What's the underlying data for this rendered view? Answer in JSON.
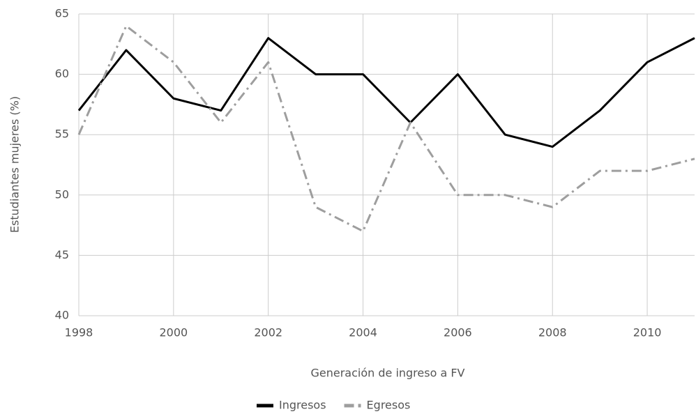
{
  "chart_data": {
    "type": "line",
    "xlabel": "Generación de ingreso a FV",
    "ylabel": "Estudiantes mujeres (%)",
    "x": [
      1998,
      1999,
      2000,
      2001,
      2002,
      2003,
      2004,
      2005,
      2006,
      2007,
      2008,
      2009,
      2010,
      2011
    ],
    "series": [
      {
        "name": "Ingresos",
        "color": "#000000",
        "linestyle": "solid",
        "values": [
          57,
          62,
          58,
          57,
          63,
          60,
          60,
          56,
          60,
          55,
          54,
          57,
          61,
          63
        ]
      },
      {
        "name": "Egresos",
        "color": "#9e9e9e",
        "linestyle": "dashdot",
        "values": [
          55,
          64,
          61,
          56,
          61,
          49,
          47,
          56,
          50,
          50,
          49,
          52,
          52,
          53
        ]
      }
    ],
    "xlim": [
      1998,
      2011
    ],
    "xticks": [
      1998,
      2000,
      2002,
      2004,
      2006,
      2008,
      2010
    ],
    "ylim": [
      40,
      65
    ],
    "yticks": [
      40,
      45,
      50,
      55,
      60,
      65
    ],
    "grid": true,
    "legend": "bottom"
  }
}
